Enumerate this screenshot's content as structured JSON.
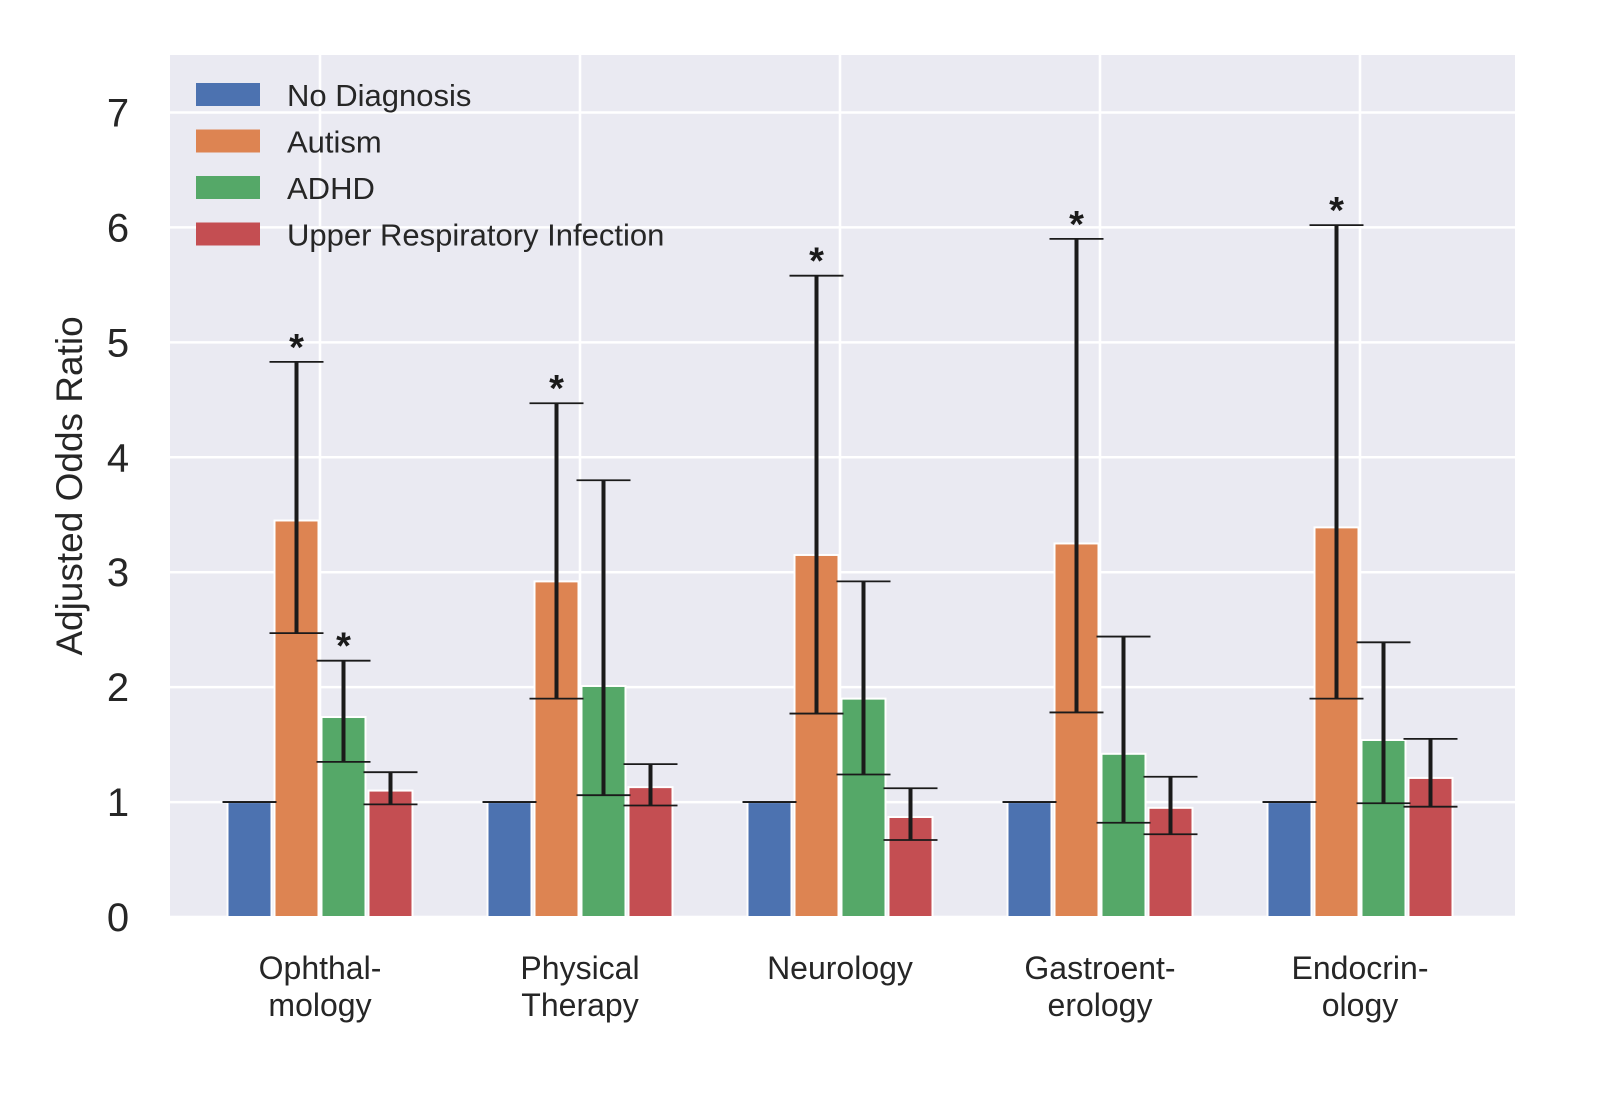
{
  "chart_data": {
    "type": "bar",
    "ylabel": "Adjusted Odds Ratio",
    "xlabel": "",
    "ylim": [
      0,
      7.5
    ],
    "yticks": [
      0,
      1,
      2,
      3,
      4,
      5,
      6,
      7
    ],
    "grid": true,
    "legend_position": "top-left",
    "categories": [
      [
        "Ophthal-",
        "mology"
      ],
      [
        "Physical",
        "Therapy"
      ],
      [
        "Neurology"
      ],
      [
        "Gastroent-",
        "erology"
      ],
      [
        "Endocrin-",
        "ology"
      ]
    ],
    "significance_marker": "*",
    "series": [
      {
        "name": "No Diagnosis",
        "color": "#4c72b0",
        "values": [
          1,
          1,
          1,
          1,
          1
        ],
        "ci_low": [
          1,
          1,
          1,
          1,
          1
        ],
        "ci_high": [
          1,
          1,
          1,
          1,
          1
        ],
        "significant": [
          false,
          false,
          false,
          false,
          false
        ]
      },
      {
        "name": "Autism",
        "color": "#dd8452",
        "values": [
          3.45,
          2.92,
          3.15,
          3.25,
          3.39
        ],
        "ci_low": [
          2.47,
          1.9,
          1.77,
          1.78,
          1.9
        ],
        "ci_high": [
          4.83,
          4.47,
          5.58,
          5.9,
          6.02
        ],
        "significant": [
          true,
          true,
          true,
          true,
          true
        ]
      },
      {
        "name": "ADHD",
        "color": "#55a868",
        "values": [
          1.74,
          2.01,
          1.9,
          1.42,
          1.54
        ],
        "ci_low": [
          1.35,
          1.06,
          1.24,
          0.82,
          0.99
        ],
        "ci_high": [
          2.23,
          3.8,
          2.92,
          2.44,
          2.39
        ],
        "significant": [
          true,
          false,
          false,
          false,
          false
        ]
      },
      {
        "name": "Upper Respiratory Infection",
        "color": "#c44e52",
        "values": [
          1.1,
          1.13,
          0.87,
          0.95,
          1.21
        ],
        "ci_low": [
          0.98,
          0.97,
          0.67,
          0.72,
          0.96
        ],
        "ci_high": [
          1.26,
          1.33,
          1.12,
          1.22,
          1.55
        ],
        "significant": [
          false,
          false,
          false,
          false,
          false
        ]
      }
    ]
  }
}
